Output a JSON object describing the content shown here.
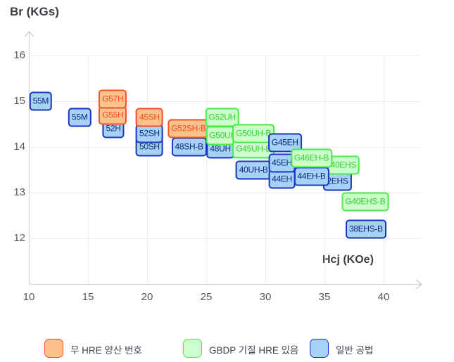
{
  "titles": {
    "y_axis": "Br (KGs)",
    "x_axis": "Hcj (KOe)"
  },
  "legend": {
    "items": [
      {
        "group": "hre_none",
        "label": "무 HRE 양산 번호"
      },
      {
        "group": "gbdp",
        "label": "GBDP 기질 HRE 있음"
      },
      {
        "group": "normal",
        "label": "일반 공법"
      }
    ]
  },
  "chart_data": {
    "type": "scatter",
    "title": "",
    "xlabel": "Hcj (KOe)",
    "ylabel": "Br (KGs)",
    "xlim": [
      10,
      43
    ],
    "ylim": [
      11,
      16.5
    ],
    "grid": true,
    "legend_position": "bottom",
    "x_ticks": [
      10,
      15,
      20,
      25,
      30,
      35,
      40
    ],
    "y_ticks": [
      16,
      15,
      14,
      13,
      12
    ],
    "colors": {
      "hre_none": {
        "fill": "#fcc28c",
        "border": "#f4502a",
        "text": "#ef4a1e"
      },
      "gbdp": {
        "fill": "#ccffcc",
        "border": "#45ee45",
        "text": "#2fd32f"
      },
      "normal": {
        "fill": "#a6d2f8",
        "border": "#1a35c0",
        "text": "#14267c"
      }
    },
    "points": [
      {
        "label": "55M",
        "group": "normal",
        "hcj": 11.0,
        "br": 15.0
      },
      {
        "label": "55M",
        "group": "normal",
        "hcj": 14.3,
        "br": 14.65
      },
      {
        "label": "52H",
        "group": "normal",
        "hcj": 17.15,
        "br": 14.4
      },
      {
        "label": "G55H",
        "group": "hre_none",
        "hcj": 17.1,
        "br": 14.7
      },
      {
        "label": "G57H",
        "group": "hre_none",
        "hcj": 17.1,
        "br": 15.05
      },
      {
        "label": "50SH",
        "group": "normal",
        "hcj": 20.2,
        "br": 14.0
      },
      {
        "label": "52SH",
        "group": "normal",
        "hcj": 20.2,
        "br": 14.3
      },
      {
        "label": "45SH",
        "group": "hre_none",
        "hcj": 20.2,
        "br": 14.65
      },
      {
        "label": "48SH-B",
        "group": "normal",
        "hcj": 23.55,
        "br": 14.0
      },
      {
        "label": "G52SH-B",
        "group": "hre_none",
        "hcj": 23.5,
        "br": 14.4
      },
      {
        "label": "48UH",
        "group": "normal",
        "hcj": 26.2,
        "br": 13.95
      },
      {
        "label": "G50UH",
        "group": "gbdp",
        "hcj": 26.4,
        "br": 14.25
      },
      {
        "label": "G52UH",
        "group": "gbdp",
        "hcj": 26.35,
        "br": 14.65
      },
      {
        "label": "40UH-B",
        "group": "normal",
        "hcj": 29.0,
        "br": 13.5
      },
      {
        "label": "G45UH-B",
        "group": "gbdp",
        "hcj": 29.0,
        "br": 13.95
      },
      {
        "label": "G50UH-B",
        "group": "gbdp",
        "hcj": 29.0,
        "br": 14.3
      },
      {
        "label": "2EHS",
        "group": "normal",
        "hcj": 36.1,
        "br": 13.25
      },
      {
        "label": "40EHS",
        "group": "gbdp",
        "hcj": 36.6,
        "br": 13.6
      },
      {
        "label": "44EH",
        "group": "normal",
        "hcj": 31.4,
        "br": 13.3
      },
      {
        "label": "45EH",
        "group": "normal",
        "hcj": 31.4,
        "br": 13.65
      },
      {
        "label": "G45EH",
        "group": "normal",
        "hcj": 31.65,
        "br": 14.1
      },
      {
        "label": "44EH-B",
        "group": "normal",
        "hcj": 33.9,
        "br": 13.35
      },
      {
        "label": "G46EH-B",
        "group": "gbdp",
        "hcj": 33.9,
        "br": 13.75
      },
      {
        "label": "38EHS-B",
        "group": "normal",
        "hcj": 38.5,
        "br": 12.2
      },
      {
        "label": "G40EHS-B",
        "group": "gbdp",
        "hcj": 38.45,
        "br": 12.8
      }
    ]
  }
}
